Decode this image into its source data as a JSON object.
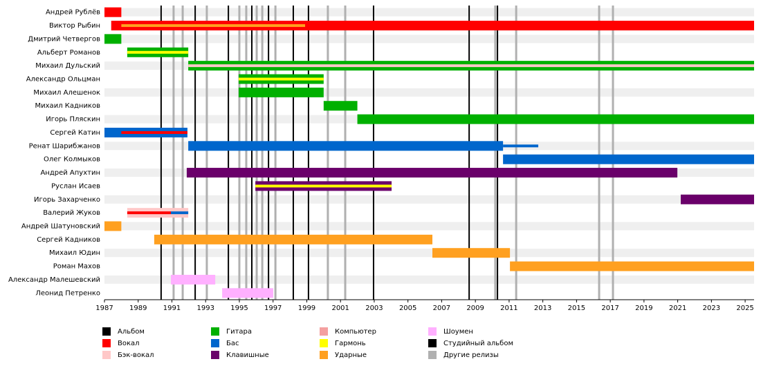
{
  "chart_data": {
    "type": "timeline",
    "xlim": [
      1987,
      2025.53
    ],
    "xticks": [
      1987,
      1989,
      1991,
      1993,
      1995,
      1997,
      1999,
      2001,
      2003,
      2005,
      2007,
      2009,
      2011,
      2013,
      2015,
      2017,
      2019,
      2021,
      2023,
      2025
    ],
    "roles": [
      {
        "name": "Альбом",
        "color": "#000000"
      },
      {
        "name": "Вокал",
        "color": "#ff0000"
      },
      {
        "name": "Бэк-вокал",
        "color": "#ffc8c8"
      },
      {
        "name": "Гитара",
        "color": "#00b000"
      },
      {
        "name": "Бас",
        "color": "#0066cc"
      },
      {
        "name": "Клавишные",
        "color": "#6a006a"
      },
      {
        "name": "Компьютер",
        "color": "#f4a0a0"
      },
      {
        "name": "Гармонь",
        "color": "#ffff00"
      },
      {
        "name": "Ударные",
        "color": "#ffa020"
      },
      {
        "name": "Шоумен",
        "color": "#ffb0ff"
      },
      {
        "name": "Студийный альбом",
        "color": "#000000"
      },
      {
        "name": "Другие релизы",
        "color": "#b0b0b0"
      }
    ],
    "members": [
      {
        "name": "Андрей Рублёв",
        "bars": [
          {
            "start": 1987,
            "end": 1988,
            "role": 1
          }
        ],
        "inner": []
      },
      {
        "name": "Виктор Рыбин",
        "bars": [
          {
            "start": 1987.4,
            "end": 2025.53,
            "role": 1
          }
        ],
        "inner": [
          {
            "start": 1988,
            "end": 1998.9,
            "role": 8
          }
        ]
      },
      {
        "name": "Дмитрий Четвергов",
        "bars": [
          {
            "start": 1987,
            "end": 1988,
            "role": 3
          }
        ],
        "inner": []
      },
      {
        "name": "Альберт Романов",
        "bars": [
          {
            "start": 1988.35,
            "end": 1991.97,
            "role": 3
          }
        ],
        "inner": [
          {
            "start": 1988.35,
            "end": 1991.97,
            "role": 7
          }
        ]
      },
      {
        "name": "Михаил Дульский",
        "bars": [
          {
            "start": 1991.97,
            "end": 2025.53,
            "role": 3
          }
        ],
        "inner": [
          {
            "start": 1991.97,
            "end": 2025.53,
            "role": 2
          }
        ]
      },
      {
        "name": "Александр Ольцман",
        "bars": [
          {
            "start": 1994.96,
            "end": 2000.0,
            "role": 3
          }
        ],
        "inner": [
          {
            "start": 1994.96,
            "end": 2000.0,
            "role": 7
          }
        ]
      },
      {
        "name": "Михаил Алешенок",
        "bars": [
          {
            "start": 1994.96,
            "end": 2000.0,
            "role": 3
          }
        ],
        "inner": []
      },
      {
        "name": "Михаил Кадников",
        "bars": [
          {
            "start": 2000.0,
            "end": 2002.0,
            "role": 3
          }
        ],
        "inner": []
      },
      {
        "name": "Игорь Пляскин",
        "bars": [
          {
            "start": 2002.0,
            "end": 2025.53,
            "role": 3
          }
        ],
        "inner": []
      },
      {
        "name": "Сергей Катин",
        "bars": [
          {
            "start": 1987,
            "end": 1991.92,
            "role": 4
          }
        ],
        "inner": [
          {
            "start": 1988,
            "end": 1991.92,
            "role": 1
          }
        ]
      },
      {
        "name": "Ренат Шарибжанов",
        "bars": [
          {
            "start": 1991.97,
            "end": 2010.64,
            "role": 4
          }
        ],
        "inner": [
          {
            "start": 2010.64,
            "end": 2012.73,
            "role": 4
          }
        ]
      },
      {
        "name": "Олег Колмыков",
        "bars": [
          {
            "start": 2010.64,
            "end": 2025.53,
            "role": 4
          }
        ],
        "inner": []
      },
      {
        "name": "Андрей Апухтин",
        "bars": [
          {
            "start": 1991.88,
            "end": 2020.98,
            "role": 5
          }
        ],
        "inner": []
      },
      {
        "name": "Руслан Исаев",
        "bars": [
          {
            "start": 1995.95,
            "end": 2004.03,
            "role": 5
          }
        ],
        "inner": [
          {
            "start": 1995.95,
            "end": 2004.03,
            "role": 7
          }
        ]
      },
      {
        "name": "Игорь Захарченко",
        "bars": [
          {
            "start": 2021.18,
            "end": 2025.53,
            "role": 5
          }
        ],
        "inner": []
      },
      {
        "name": "Валерий Жуков",
        "bars": [
          {
            "start": 1988.35,
            "end": 1991.97,
            "role": 2
          }
        ],
        "inner": [
          {
            "start": 1988.35,
            "end": 1990.94,
            "role": 1
          },
          {
            "start": 1990.94,
            "end": 1991.97,
            "role": 4
          }
        ]
      },
      {
        "name": "Андрей Шатуновский",
        "bars": [
          {
            "start": 1987,
            "end": 1988,
            "role": 8
          }
        ],
        "inner": []
      },
      {
        "name": "Сергей Кадников",
        "bars": [
          {
            "start": 1989.95,
            "end": 2006.45,
            "role": 8
          }
        ],
        "inner": []
      },
      {
        "name": "Михаил Юдин",
        "bars": [
          {
            "start": 2006.45,
            "end": 2011.05,
            "role": 8
          }
        ],
        "inner": []
      },
      {
        "name": "Роман Махов",
        "bars": [
          {
            "start": 2011.05,
            "end": 2025.53,
            "role": 8
          }
        ],
        "inner": []
      },
      {
        "name": "Александр Малешевский",
        "bars": [
          {
            "start": 1990.94,
            "end": 1993.57,
            "role": 9
          }
        ],
        "inner": []
      },
      {
        "name": "Леонид Петренко",
        "bars": [
          {
            "start": 1993.98,
            "end": 1997.01,
            "role": 9
          }
        ],
        "inner": []
      }
    ],
    "releases": [
      {
        "x": 1991.1,
        "role": 11
      },
      {
        "x": 1991.64,
        "role": 11
      },
      {
        "x": 1993.07,
        "role": 11
      },
      {
        "x": 1995.0,
        "role": 11
      },
      {
        "x": 1995.41,
        "role": 11
      },
      {
        "x": 1996.03,
        "role": 11
      },
      {
        "x": 1996.36,
        "role": 11
      },
      {
        "x": 1997.14,
        "role": 11
      },
      {
        "x": 2000.25,
        "role": 11
      },
      {
        "x": 2001.28,
        "role": 11
      },
      {
        "x": 2010.18,
        "role": 11
      },
      {
        "x": 2011.42,
        "role": 11
      },
      {
        "x": 2016.34,
        "role": 11
      },
      {
        "x": 2017.16,
        "role": 11
      },
      {
        "x": 1990.36,
        "role": 10
      },
      {
        "x": 1992.38,
        "role": 10
      },
      {
        "x": 1994.35,
        "role": 10
      },
      {
        "x": 1995.74,
        "role": 10
      },
      {
        "x": 1996.73,
        "role": 10
      },
      {
        "x": 1998.2,
        "role": 10
      },
      {
        "x": 1999.1,
        "role": 10
      },
      {
        "x": 2002.96,
        "role": 10
      },
      {
        "x": 2008.63,
        "role": 10
      },
      {
        "x": 2010.31,
        "role": 10
      }
    ]
  }
}
